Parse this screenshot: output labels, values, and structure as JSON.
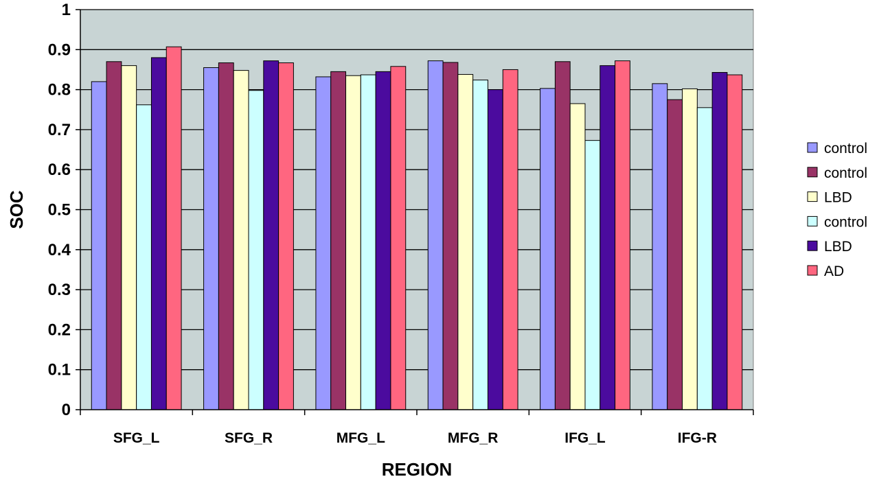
{
  "chart_data": {
    "type": "bar",
    "xlabel": "REGION",
    "ylabel": "SOC",
    "ylim": [
      0,
      1
    ],
    "yticks": [
      "0",
      "0.1",
      "0.2",
      "0.3",
      "0.4",
      "0.5",
      "0.6",
      "0.7",
      "0.8",
      "0.9",
      "1"
    ],
    "grid": true,
    "legend_position": "right",
    "plot_background": "#c8d4d4",
    "categories": [
      "SFG_L",
      "SFG_R",
      "MFG_L",
      "MFG_R",
      "IFG_L",
      "IFG-R"
    ],
    "series": [
      {
        "name": "control",
        "color": "#9999ff",
        "values": [
          0.82,
          0.855,
          0.832,
          0.872,
          0.803,
          0.815
        ]
      },
      {
        "name": "control",
        "color": "#993366",
        "values": [
          0.87,
          0.867,
          0.845,
          0.868,
          0.87,
          0.775
        ]
      },
      {
        "name": "LBD",
        "color": "#ffffcc",
        "values": [
          0.86,
          0.848,
          0.835,
          0.838,
          0.765,
          0.802
        ]
      },
      {
        "name": "control",
        "color": "#ccffff",
        "values": [
          0.762,
          0.798,
          0.837,
          0.824,
          0.673,
          0.755
        ]
      },
      {
        "name": "LBD",
        "color": "#4b0b9e",
        "values": [
          0.88,
          0.872,
          0.845,
          0.8,
          0.86,
          0.843
        ]
      },
      {
        "name": "AD",
        "color": "#ff6680",
        "values": [
          0.907,
          0.867,
          0.858,
          0.85,
          0.872,
          0.837
        ]
      }
    ]
  }
}
